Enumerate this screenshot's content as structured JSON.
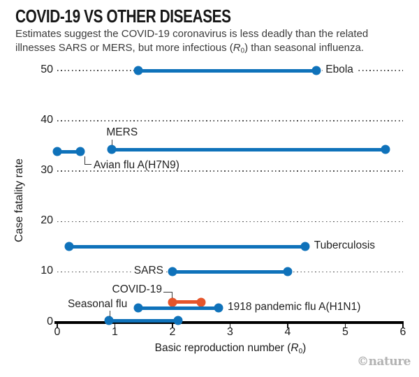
{
  "header": {
    "title": "COVID-19 VS OTHER DISEASES",
    "subtitle": {
      "pre": "Estimates suggest the COVID-19 coronavirus is less deadly than the related illnesses SARS or MERS, but more infectious (",
      "r": "R",
      "sub": "0",
      "post": ") than seasonal influenza."
    }
  },
  "chart_data": {
    "type": "dumbbell-range",
    "title": "COVID-19 VS OTHER DISEASES",
    "xlabel": {
      "pre": "Basic reproduction number (",
      "r": "R",
      "sub": "0",
      "post": ")"
    },
    "ylabel": "Case fatality rate",
    "xlim": [
      0,
      6
    ],
    "ylim": [
      0,
      50
    ],
    "xticks": [
      0,
      1,
      2,
      3,
      4,
      5,
      6
    ],
    "yticks": [
      0,
      10,
      20,
      30,
      40,
      50
    ],
    "grid": "horizontal dotted lines at y = 10,20,30,40,50",
    "legend": "none",
    "colors": {
      "default": "#0f72ba",
      "highlight": "#e6552b",
      "grid": "#4a4a4a",
      "axis": "#000000"
    },
    "series": [
      {
        "name": "Ebola",
        "x": [
          1.4,
          4.5
        ],
        "y": 50,
        "color": "#0f72ba",
        "label_placement": "right"
      },
      {
        "name": "MERS",
        "x": [
          0.95,
          5.7
        ],
        "y": 34.3,
        "color": "#0f72ba",
        "label_placement": "above"
      },
      {
        "name": "Avian flu A(H7N9)",
        "x": [
          0.0,
          0.4
        ],
        "y": 33.9,
        "color": "#0f72ba",
        "label_placement": "below-elbow"
      },
      {
        "name": "Tuberculosis",
        "x": [
          0.2,
          4.3
        ],
        "y": 15,
        "color": "#0f72ba",
        "label_placement": "right"
      },
      {
        "name": "SARS",
        "x": [
          2.0,
          4.0
        ],
        "y": 10,
        "color": "#0f72ba",
        "label_placement": "left"
      },
      {
        "name": "COVID-19",
        "x": [
          2.0,
          2.5
        ],
        "y": 4,
        "color": "#e6552b",
        "label_placement": "above-elbow"
      },
      {
        "name": "1918 pandemic flu A(H1N1)",
        "x": [
          1.4,
          2.8
        ],
        "y": 2.8,
        "color": "#0f72ba",
        "label_placement": "right"
      },
      {
        "name": "Seasonal flu",
        "x": [
          0.9,
          2.1
        ],
        "y": 0.3,
        "color": "#0f72ba",
        "label_placement": "above-left"
      }
    ]
  },
  "footer": {
    "credit": "©nature"
  }
}
